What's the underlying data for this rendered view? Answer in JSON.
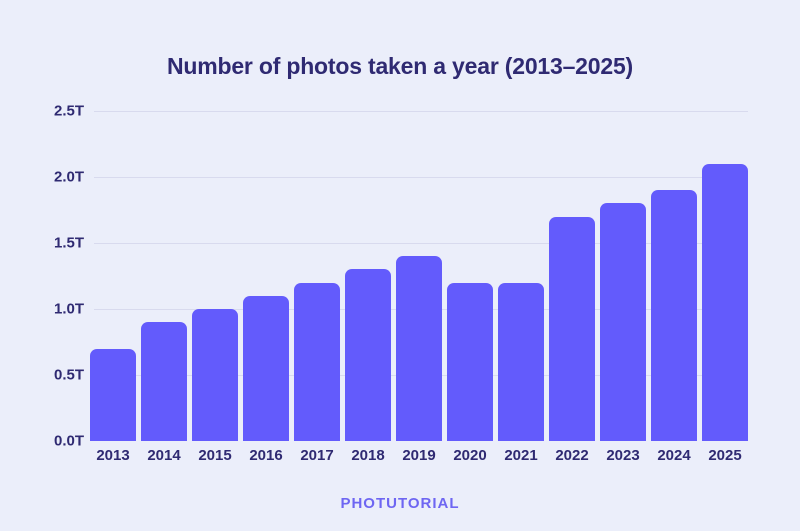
{
  "colors": {
    "background": "#ebeefa",
    "bar": "#635bfc",
    "text": "#2f2a72",
    "grid": "#d8daee",
    "brand": "#6e66f2"
  },
  "footer": {
    "brand": "PHOTUTORIAL"
  },
  "chart_data": {
    "type": "bar",
    "title": "Number of photos taken a year (2013–2025)",
    "categories": [
      "2013",
      "2014",
      "2015",
      "2016",
      "2017",
      "2018",
      "2019",
      "2020",
      "2021",
      "2022",
      "2023",
      "2024",
      "2025"
    ],
    "values": [
      0.7,
      0.9,
      1.0,
      1.1,
      1.2,
      1.3,
      1.4,
      1.2,
      1.2,
      1.7,
      1.8,
      1.9,
      2.1
    ],
    "unit": "T",
    "xlabel": "",
    "ylabel": "",
    "ylim": [
      0,
      2.5
    ],
    "y_ticks": [
      {
        "value": 2.5,
        "label": "2.5T"
      },
      {
        "value": 2.0,
        "label": "2.0T"
      },
      {
        "value": 1.5,
        "label": "1.5T"
      },
      {
        "value": 1.0,
        "label": "1.0T"
      },
      {
        "value": 0.5,
        "label": "0.5T"
      },
      {
        "value": 0.0,
        "label": "0.0T"
      }
    ],
    "grid": "horizontal",
    "legend": "none"
  }
}
